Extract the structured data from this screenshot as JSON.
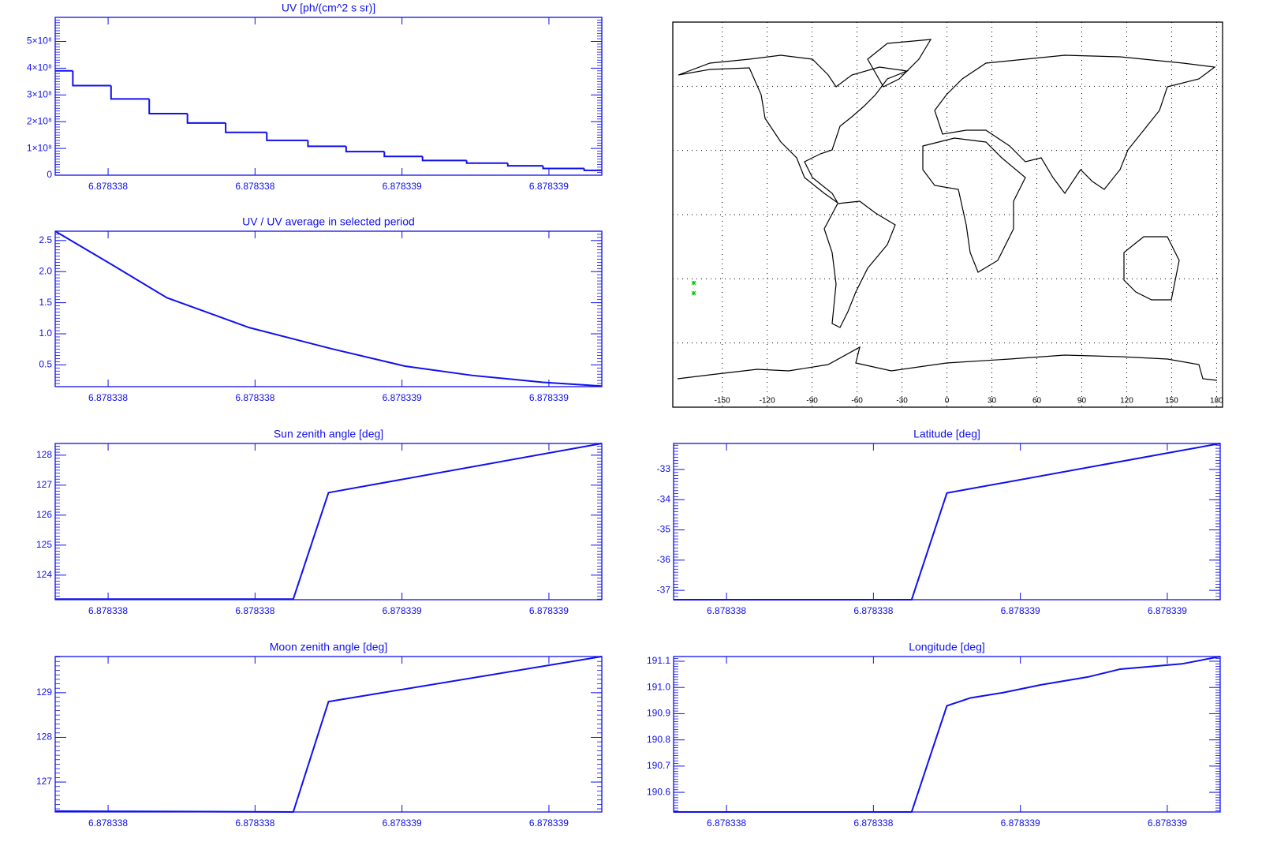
{
  "chart_data": [
    {
      "type": "histogram",
      "title": "UV [ph/(cm^2 s sr)]",
      "color": "#1010ee",
      "bins": [
        6.87833752,
        6.87833758,
        6.87833771,
        6.87833784,
        6.87833797,
        6.8783381,
        6.87833824,
        6.87833838,
        6.87833851,
        6.87833864,
        6.87833877,
        6.87833892,
        6.87833906,
        6.87833918,
        6.87833932,
        6.87833938
      ],
      "counts": [
        390000000,
        335000000,
        285000000,
        230000000,
        195000000,
        160000000,
        130000000,
        108000000,
        88000000,
        70000000,
        55000000,
        45000000,
        35000000,
        25000000,
        18000000
      ],
      "xlim": [
        6.87833752,
        6.87833938
      ],
      "xticks": [
        {
          "value": 6.8783377,
          "label": "6.878338"
        },
        {
          "value": 6.8783382,
          "label": "6.878338"
        },
        {
          "value": 6.8783387,
          "label": "6.878339"
        },
        {
          "value": 6.8783392,
          "label": "6.878339"
        }
      ],
      "ylim": [
        0,
        590000000
      ],
      "yticks": [
        0,
        {
          "value": 100000000,
          "label": "1×10⁸"
        },
        {
          "value": 200000000,
          "label": "2×10⁸"
        },
        {
          "value": 300000000,
          "label": "3×10⁸"
        },
        {
          "value": 400000000,
          "label": "4×10⁸"
        },
        {
          "value": 500000000,
          "label": "5×10⁸"
        }
      ]
    },
    {
      "type": "line",
      "title": "UV / UV average in selected period",
      "color": "#1010ee",
      "x": [
        6.87833752,
        6.87833771,
        6.8783379,
        6.87833818,
        6.87833846,
        6.87833871,
        6.87833894,
        6.87833918,
        6.87833938
      ],
      "values": [
        2.65,
        2.12,
        1.58,
        1.1,
        0.76,
        0.48,
        0.33,
        0.22,
        0.16
      ],
      "xlim": [
        6.87833752,
        6.87833938
      ],
      "xticks": [
        {
          "value": 6.8783377,
          "label": "6.878338"
        },
        {
          "value": 6.8783382,
          "label": "6.878338"
        },
        {
          "value": 6.8783387,
          "label": "6.878339"
        },
        {
          "value": 6.8783392,
          "label": "6.878339"
        }
      ],
      "ylim": [
        0.15,
        2.65
      ],
      "yticks": [
        0.5,
        {
          "value": 1,
          "label": "1.0"
        },
        1.5,
        {
          "value": 2,
          "label": "2.0"
        },
        2.5
      ]
    },
    {
      "type": "map",
      "color": "#00cc00",
      "x": [
        -169,
        -169
      ],
      "values": [
        -31.9,
        -36.7
      ],
      "xlim": [
        -183,
        184
      ],
      "ylim": [
        -90,
        90
      ],
      "xticks": [
        -150,
        -120,
        -90,
        -60,
        -30,
        0,
        30,
        60,
        90,
        120,
        150,
        180
      ],
      "yticks": [
        -60,
        -30,
        0,
        30,
        60
      ]
    },
    {
      "type": "line",
      "title": "Sun zenith angle [deg]",
      "color": "#1010ee",
      "x": [
        6.87833752,
        6.87833833,
        6.87833845,
        6.87833938
      ],
      "values": [
        123.2,
        123.2,
        126.75,
        128.39
      ],
      "xlim": [
        6.87833752,
        6.87833938
      ],
      "xticks": [
        {
          "value": 6.8783377,
          "label": "6.878338"
        },
        {
          "value": 6.8783382,
          "label": "6.878338"
        },
        {
          "value": 6.8783387,
          "label": "6.878339"
        },
        {
          "value": 6.8783392,
          "label": "6.878339"
        }
      ],
      "ylim": [
        123.18,
        128.39
      ],
      "yticks": [
        124,
        125,
        126,
        127,
        128
      ]
    },
    {
      "type": "line",
      "title": "Latitude [deg]",
      "color": "#1010ee",
      "x": [
        6.87833752,
        6.87833833,
        6.87833845,
        6.87833938
      ],
      "values": [
        -37.31,
        -37.31,
        -33.78,
        -32.14
      ],
      "xlim": [
        6.87833752,
        6.87833938
      ],
      "xticks": [
        {
          "value": 6.8783377,
          "label": "6.878338"
        },
        {
          "value": 6.8783382,
          "label": "6.878338"
        },
        {
          "value": 6.8783387,
          "label": "6.878339"
        },
        {
          "value": 6.8783392,
          "label": "6.878339"
        }
      ],
      "ylim": [
        -37.31,
        -32.14
      ],
      "yticks": [
        -37,
        -36,
        -35,
        -34,
        -33
      ]
    },
    {
      "type": "line",
      "title": "Moon zenith angle [deg]",
      "color": "#1010ee",
      "x": [
        6.87833752,
        6.87833833,
        6.87833845,
        6.87833938
      ],
      "values": [
        126.35,
        126.33,
        128.8,
        129.81
      ],
      "xlim": [
        6.87833752,
        6.87833938
      ],
      "xticks": [
        {
          "value": 6.8783377,
          "label": "6.878338"
        },
        {
          "value": 6.8783382,
          "label": "6.878338"
        },
        {
          "value": 6.8783387,
          "label": "6.878339"
        },
        {
          "value": 6.8783392,
          "label": "6.878339"
        }
      ],
      "ylim": [
        126.33,
        129.81
      ],
      "yticks": [
        127,
        128,
        129
      ]
    },
    {
      "type": "line",
      "title": "Longitude [deg]",
      "color": "#1010ee",
      "x": [
        6.87833752,
        6.87833833,
        6.87833845,
        6.87833853,
        6.87833864,
        6.87833877,
        6.87833893,
        6.87833904,
        6.87833925,
        6.87833938
      ],
      "values": [
        190.525,
        190.525,
        190.93,
        190.96,
        190.98,
        191.01,
        191.04,
        191.07,
        191.09,
        191.118
      ],
      "xlim": [
        6.87833752,
        6.87833938
      ],
      "xticks": [
        {
          "value": 6.8783377,
          "label": "6.878338"
        },
        {
          "value": 6.8783382,
          "label": "6.878338"
        },
        {
          "value": 6.8783387,
          "label": "6.878339"
        },
        {
          "value": 6.8783392,
          "label": "6.878339"
        }
      ],
      "ylim": [
        190.525,
        191.118
      ],
      "yticks": [
        190.6,
        190.7,
        190.8,
        190.9,
        {
          "value": 191,
          "label": "191.0"
        },
        191.1
      ]
    }
  ]
}
